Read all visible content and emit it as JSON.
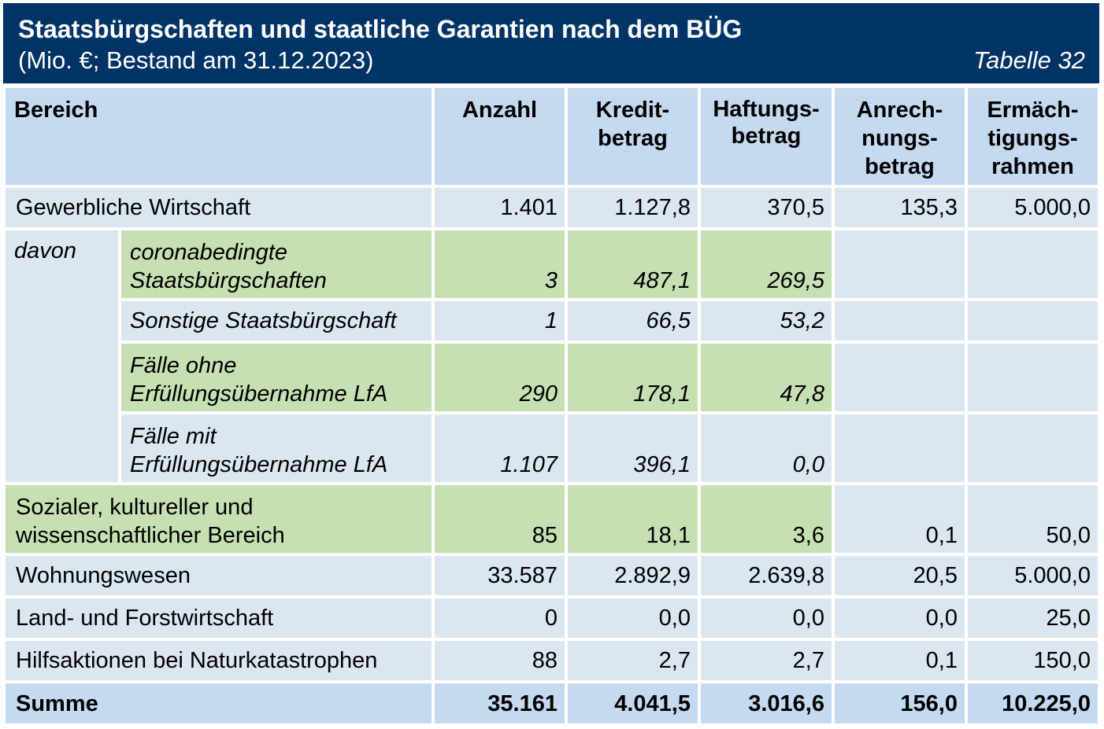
{
  "header": {
    "title": "Staatsbürgschaften und staatliche Garantien nach dem BÜG",
    "subtitle": "(Mio. €; Bestand am 31.12.2023)",
    "table_label": "Tabelle 32"
  },
  "columns": {
    "bereich": "Bereich",
    "anzahl": "Anzahl",
    "kredit": [
      "Kredit-",
      "betrag"
    ],
    "haftung": [
      "Haftungs-",
      "betrag"
    ],
    "anrechnung": [
      "Anrech-",
      "nungs-",
      "betrag"
    ],
    "ermaechtigung": [
      "Ermäch-",
      "tigungs-",
      "rahmen"
    ]
  },
  "rows": {
    "gewerblich": {
      "label": "Gewerbliche Wirtschaft",
      "anzahl": "1.401",
      "kredit": "1.127,8",
      "haftung": "370,5",
      "anrechnung": "135,3",
      "ermaechtigung": "5.000,0"
    },
    "davon": "davon",
    "corona": {
      "label": [
        "coronabedingte",
        "Staatsbürgschaften"
      ],
      "anzahl": "3",
      "kredit": "487,1",
      "haftung": "269,5"
    },
    "sonstige": {
      "label": "Sonstige Staatsbürgschaft",
      "anzahl": "1",
      "kredit": "66,5",
      "haftung": "53,2"
    },
    "ohne": {
      "label": [
        "Fälle ohne",
        "Erfüllungsübernahme LfA"
      ],
      "anzahl": "290",
      "kredit": "178,1",
      "haftung": "47,8"
    },
    "mit": {
      "label": [
        "Fälle mit",
        "Erfüllungsübernahme LfA"
      ],
      "anzahl": "1.107",
      "kredit": "396,1",
      "haftung": "0,0"
    },
    "sozial": {
      "label": [
        "Sozialer, kultureller und",
        "wissenschaftlicher Bereich"
      ],
      "anzahl": "85",
      "kredit": "18,1",
      "haftung": "3,6",
      "anrechnung": "0,1",
      "ermaechtigung": "50,0"
    },
    "wohnung": {
      "label": "Wohnungswesen",
      "anzahl": "33.587",
      "kredit": "2.892,9",
      "haftung": "2.639,8",
      "anrechnung": "20,5",
      "ermaechtigung": "5.000,0"
    },
    "land": {
      "label": "Land- und Forstwirtschaft",
      "anzahl": "0",
      "kredit": "0,0",
      "haftung": "0,0",
      "anrechnung": "0,0",
      "ermaechtigung": "25,0"
    },
    "hilfe": {
      "label": "Hilfsaktionen bei Naturkatastrophen",
      "anzahl": "88",
      "kredit": "2,7",
      "haftung": "2,7",
      "anrechnung": "0,1",
      "ermaechtigung": "150,0"
    },
    "summe": {
      "label": "Summe",
      "anzahl": "35.161",
      "kredit": "4.041,5",
      "haftung": "3.016,6",
      "anrechnung": "156,0",
      "ermaechtigung": "10.225,0"
    }
  },
  "colors": {
    "header_bg": "#003366",
    "header_row": "#c5d9f1",
    "row_blue": "#dce6f1",
    "row_green": "#c6e0b4"
  }
}
